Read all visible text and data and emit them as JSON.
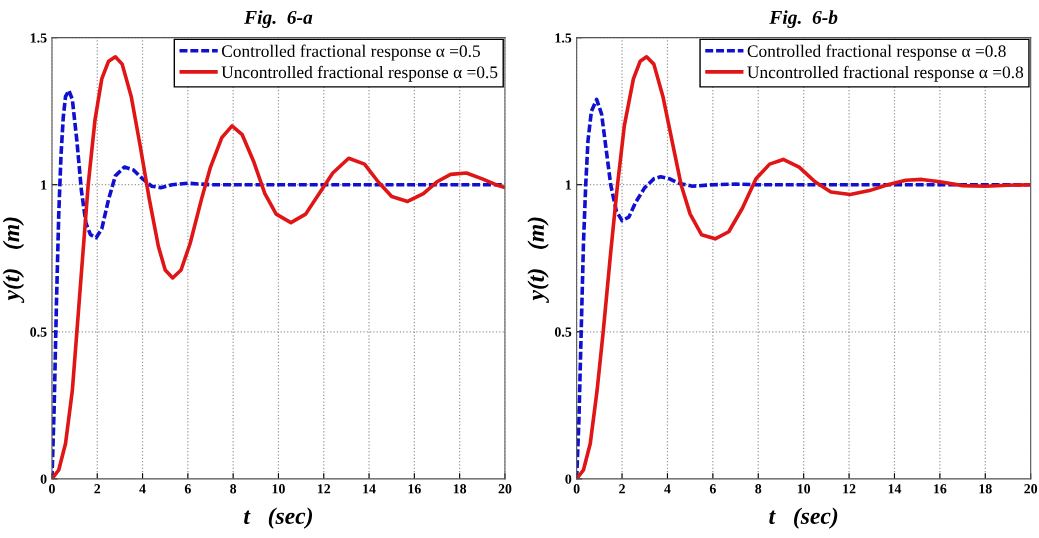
{
  "chart_data": [
    {
      "type": "line",
      "title": "Fig.  6-a",
      "xlabel": "t   (sec)",
      "ylabel": "y(t)   (m)",
      "xlim": [
        0,
        20
      ],
      "ylim": [
        0,
        1.5
      ],
      "xticks": [
        0,
        2,
        4,
        6,
        8,
        10,
        12,
        14,
        16,
        18,
        20
      ],
      "yticks": [
        0,
        0.5,
        1,
        1.5
      ],
      "grid": true,
      "legend": "top right",
      "series": [
        {
          "name": "Controlled fractional response α =0.5",
          "color": "#1010d0",
          "line_style": "dashed",
          "x": [
            0,
            0.1,
            0.2,
            0.3,
            0.4,
            0.5,
            0.6,
            0.75,
            0.9,
            1.1,
            1.3,
            1.5,
            1.7,
            1.95,
            2.2,
            2.5,
            2.8,
            3.2,
            3.6,
            4.0,
            4.4,
            4.8,
            5.3,
            6,
            7,
            8,
            10,
            12,
            14,
            16,
            18,
            20
          ],
          "values": [
            0,
            0.25,
            0.6,
            0.9,
            1.1,
            1.23,
            1.3,
            1.32,
            1.29,
            1.15,
            0.98,
            0.87,
            0.83,
            0.82,
            0.85,
            0.95,
            1.03,
            1.06,
            1.05,
            1.02,
            0.995,
            0.99,
            1.0,
            1.005,
            1.0,
            1.0,
            1.0,
            1.0,
            1.0,
            1.0,
            1.0,
            1.0
          ]
        },
        {
          "name": "Uncontrolled fractional response α =0.5",
          "color": "#e01515",
          "line_style": "solid",
          "x": [
            0,
            0.3,
            0.6,
            0.9,
            1.1,
            1.4,
            1.6,
            1.9,
            2.2,
            2.5,
            2.8,
            3.1,
            3.5,
            3.9,
            4.3,
            4.7,
            5.0,
            5.33,
            5.7,
            6.1,
            6.6,
            7.0,
            7.5,
            7.95,
            8.4,
            8.9,
            9.4,
            9.9,
            10.55,
            11.2,
            11.8,
            12.4,
            13.1,
            13.8,
            14.4,
            15.0,
            15.7,
            16.4,
            17.0,
            17.6,
            18.3,
            19.0,
            19.6,
            20
          ],
          "values": [
            0,
            0.03,
            0.12,
            0.3,
            0.5,
            0.8,
            1.0,
            1.22,
            1.36,
            1.42,
            1.435,
            1.41,
            1.3,
            1.13,
            0.95,
            0.79,
            0.71,
            0.683,
            0.71,
            0.8,
            0.95,
            1.06,
            1.16,
            1.2,
            1.17,
            1.08,
            0.97,
            0.9,
            0.871,
            0.9,
            0.97,
            1.04,
            1.09,
            1.07,
            1.01,
            0.96,
            0.943,
            0.97,
            1.01,
            1.035,
            1.04,
            1.02,
            1.0,
            0.99
          ]
        }
      ]
    },
    {
      "type": "line",
      "title": "Fig.  6-b",
      "xlabel": "t   (sec)",
      "ylabel": "y(t)   (m)",
      "xlim": [
        0,
        20
      ],
      "ylim": [
        0,
        1.5
      ],
      "xticks": [
        0,
        2,
        4,
        6,
        8,
        10,
        12,
        14,
        16,
        18,
        20
      ],
      "yticks": [
        0,
        0.5,
        1,
        1.5
      ],
      "grid": true,
      "legend": "top right",
      "series": [
        {
          "name": "Controlled fractional response α =0.8",
          "color": "#1010d0",
          "line_style": "dashed",
          "x": [
            0,
            0.1,
            0.2,
            0.3,
            0.4,
            0.5,
            0.65,
            0.88,
            1.1,
            1.3,
            1.5,
            1.75,
            2.0,
            2.3,
            2.6,
            3.0,
            3.4,
            3.7,
            4.1,
            4.5,
            5.1,
            6,
            7,
            8,
            10,
            12,
            14,
            16,
            18,
            20
          ],
          "values": [
            0,
            0.2,
            0.5,
            0.8,
            1.0,
            1.15,
            1.25,
            1.29,
            1.24,
            1.12,
            1.0,
            0.91,
            0.878,
            0.89,
            0.94,
            0.99,
            1.02,
            1.027,
            1.02,
            1.005,
            0.995,
            1.0,
            1.002,
            1.0,
            1.0,
            1.0,
            1.0,
            1.0,
            1.0,
            1.0
          ]
        },
        {
          "name": "Uncontrolled fractional response α =0.8",
          "color": "#e01515",
          "line_style": "solid",
          "x": [
            0,
            0.3,
            0.6,
            0.9,
            1.17,
            1.5,
            1.8,
            2.1,
            2.5,
            2.8,
            3.08,
            3.4,
            3.8,
            4.2,
            4.6,
            5.0,
            5.5,
            6.1,
            6.7,
            7.3,
            7.9,
            8.5,
            9.1,
            9.8,
            10.5,
            11.2,
            12.05,
            12.9,
            13.7,
            14.5,
            15.2,
            16.0,
            17.0,
            18.0,
            19.0,
            20
          ],
          "values": [
            0,
            0.03,
            0.12,
            0.3,
            0.5,
            0.77,
            1.0,
            1.2,
            1.36,
            1.42,
            1.435,
            1.41,
            1.3,
            1.15,
            1.0,
            0.9,
            0.83,
            0.816,
            0.84,
            0.92,
            1.02,
            1.07,
            1.086,
            1.06,
            1.01,
            0.975,
            0.967,
            0.98,
            1.0,
            1.015,
            1.018,
            1.01,
            0.997,
            0.995,
            0.998,
            1.0
          ]
        }
      ]
    }
  ]
}
